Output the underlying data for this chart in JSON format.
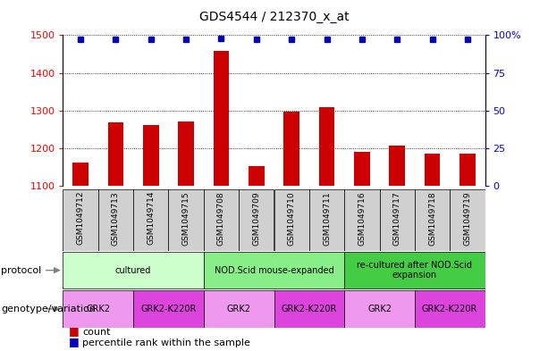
{
  "title": "GDS4544 / 212370_x_at",
  "samples": [
    "GSM1049712",
    "GSM1049713",
    "GSM1049714",
    "GSM1049715",
    "GSM1049708",
    "GSM1049709",
    "GSM1049710",
    "GSM1049711",
    "GSM1049716",
    "GSM1049717",
    "GSM1049718",
    "GSM1049719"
  ],
  "counts": [
    1162,
    1268,
    1262,
    1270,
    1458,
    1152,
    1297,
    1308,
    1190,
    1207,
    1185,
    1185
  ],
  "percentiles": [
    97,
    97,
    97,
    97,
    98,
    97,
    97,
    97,
    97,
    97,
    97,
    97
  ],
  "ylim_left": [
    1100,
    1500
  ],
  "ylim_right": [
    0,
    100
  ],
  "yticks_left": [
    1100,
    1200,
    1300,
    1400,
    1500
  ],
  "yticks_right": [
    0,
    25,
    50,
    75,
    100
  ],
  "bar_color": "#cc0000",
  "dot_color": "#0000bb",
  "protocol_groups": [
    {
      "label": "cultured",
      "start": 0,
      "end": 4,
      "color": "#ccffcc"
    },
    {
      "label": "NOD.Scid mouse-expanded",
      "start": 4,
      "end": 8,
      "color": "#88ee88"
    },
    {
      "label": "re-cultured after NOD.Scid\nexpansion",
      "start": 8,
      "end": 12,
      "color": "#44cc44"
    }
  ],
  "genotype_groups": [
    {
      "label": "GRK2",
      "start": 0,
      "end": 2,
      "color": "#ee99ee"
    },
    {
      "label": "GRK2-K220R",
      "start": 2,
      "end": 4,
      "color": "#ee44ee"
    },
    {
      "label": "GRK2",
      "start": 4,
      "end": 6,
      "color": "#ee99ee"
    },
    {
      "label": "GRK2-K220R",
      "start": 6,
      "end": 8,
      "color": "#ee44ee"
    },
    {
      "label": "GRK2",
      "start": 8,
      "end": 10,
      "color": "#ee99ee"
    },
    {
      "label": "GRK2-K220R",
      "start": 10,
      "end": 12,
      "color": "#ee44ee"
    }
  ],
  "sample_bg_color": "#d0d0d0",
  "bar_width": 0.45,
  "dot_size": 5
}
